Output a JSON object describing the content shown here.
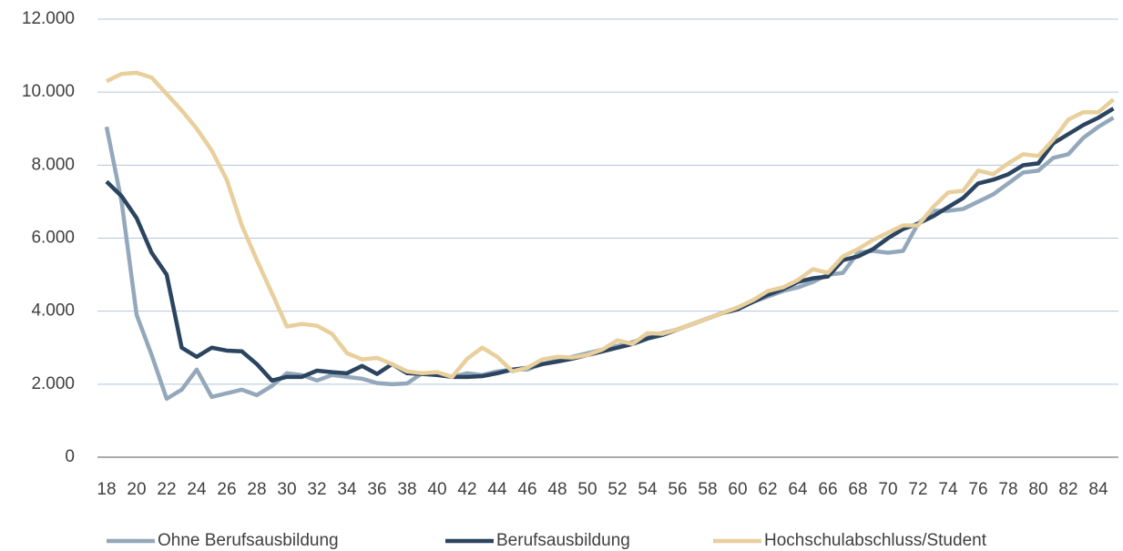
{
  "chart_data": {
    "type": "line",
    "categories": [
      18,
      null,
      20,
      null,
      22,
      null,
      24,
      null,
      26,
      null,
      28,
      null,
      30,
      null,
      32,
      null,
      34,
      null,
      36,
      null,
      38,
      null,
      40,
      null,
      42,
      null,
      44,
      null,
      46,
      null,
      48,
      null,
      50,
      null,
      52,
      null,
      54,
      null,
      56,
      null,
      58,
      null,
      60,
      null,
      62,
      null,
      64,
      null,
      66,
      null,
      68,
      null,
      70,
      null,
      72,
      null,
      74,
      null,
      76,
      null,
      78,
      null,
      80,
      null,
      82,
      null,
      84,
      null
    ],
    "series": [
      {
        "name": "Ohne Berufsausbildung",
        "color": "#94a8bb",
        "values": [
          9050,
          7000,
          3900,
          2800,
          1600,
          1850,
          2400,
          1650,
          1750,
          1850,
          1700,
          1950,
          2300,
          2250,
          2100,
          2250,
          2200,
          2150,
          2030,
          2000,
          2020,
          2300,
          2250,
          2200,
          2300,
          2250,
          2350,
          2400,
          2400,
          2550,
          2650,
          2750,
          2850,
          2950,
          3050,
          3150,
          3300,
          3400,
          3500,
          3650,
          3800,
          3950,
          4100,
          4250,
          4400,
          4550,
          4650,
          4800,
          5000,
          5050,
          5600,
          5650,
          5600,
          5650,
          6400,
          6750,
          6750,
          6800,
          7000,
          7200,
          7500,
          7800,
          7850,
          8200,
          8300,
          8750,
          9050,
          9300
        ]
      },
      {
        "name": "Berufsausbildung",
        "color": "#2b4460",
        "values": [
          7550,
          7150,
          6550,
          5600,
          5000,
          3000,
          2750,
          3000,
          2920,
          2900,
          2550,
          2100,
          2200,
          2200,
          2370,
          2330,
          2300,
          2500,
          2280,
          2550,
          2300,
          2280,
          2250,
          2200,
          2200,
          2220,
          2300,
          2400,
          2450,
          2550,
          2620,
          2700,
          2800,
          2900,
          3000,
          3100,
          3250,
          3350,
          3500,
          3650,
          3800,
          3950,
          4050,
          4250,
          4450,
          4600,
          4800,
          4900,
          4950,
          5400,
          5500,
          5700,
          6000,
          6250,
          6400,
          6600,
          6850,
          7100,
          7500,
          7600,
          7750,
          8000,
          8050,
          8600,
          8850,
          9100,
          9300,
          9550
        ]
      },
      {
        "name": "Hochschulabschluss/Student",
        "color": "#e8cf9c",
        "values": [
          10300,
          10500,
          10530,
          10400,
          9950,
          9500,
          9000,
          8400,
          7600,
          6350,
          5400,
          4500,
          3580,
          3650,
          3600,
          3380,
          2850,
          2680,
          2720,
          2550,
          2350,
          2300,
          2330,
          2200,
          2700,
          3000,
          2750,
          2350,
          2450,
          2680,
          2750,
          2730,
          2800,
          2950,
          3200,
          3100,
          3400,
          3380,
          3500,
          3650,
          3800,
          3950,
          4100,
          4300,
          4550,
          4650,
          4850,
          5150,
          5050,
          5500,
          5700,
          5950,
          6150,
          6350,
          6350,
          6850,
          7250,
          7300,
          7850,
          7750,
          8050,
          8300,
          8250,
          8700,
          9250,
          9450,
          9450,
          9800
        ]
      }
    ],
    "ylim": [
      0,
      12000
    ],
    "yticks": [
      0,
      {
        "value": 2000,
        "label": "2.000"
      },
      {
        "value": 4000,
        "label": "4.000"
      },
      {
        "value": 6000,
        "label": "6.000"
      },
      {
        "value": 8000,
        "label": "8.000"
      },
      {
        "value": 10000,
        "label": "10.000"
      },
      {
        "value": 12000,
        "label": "12.000"
      }
    ],
    "grid": true
  }
}
